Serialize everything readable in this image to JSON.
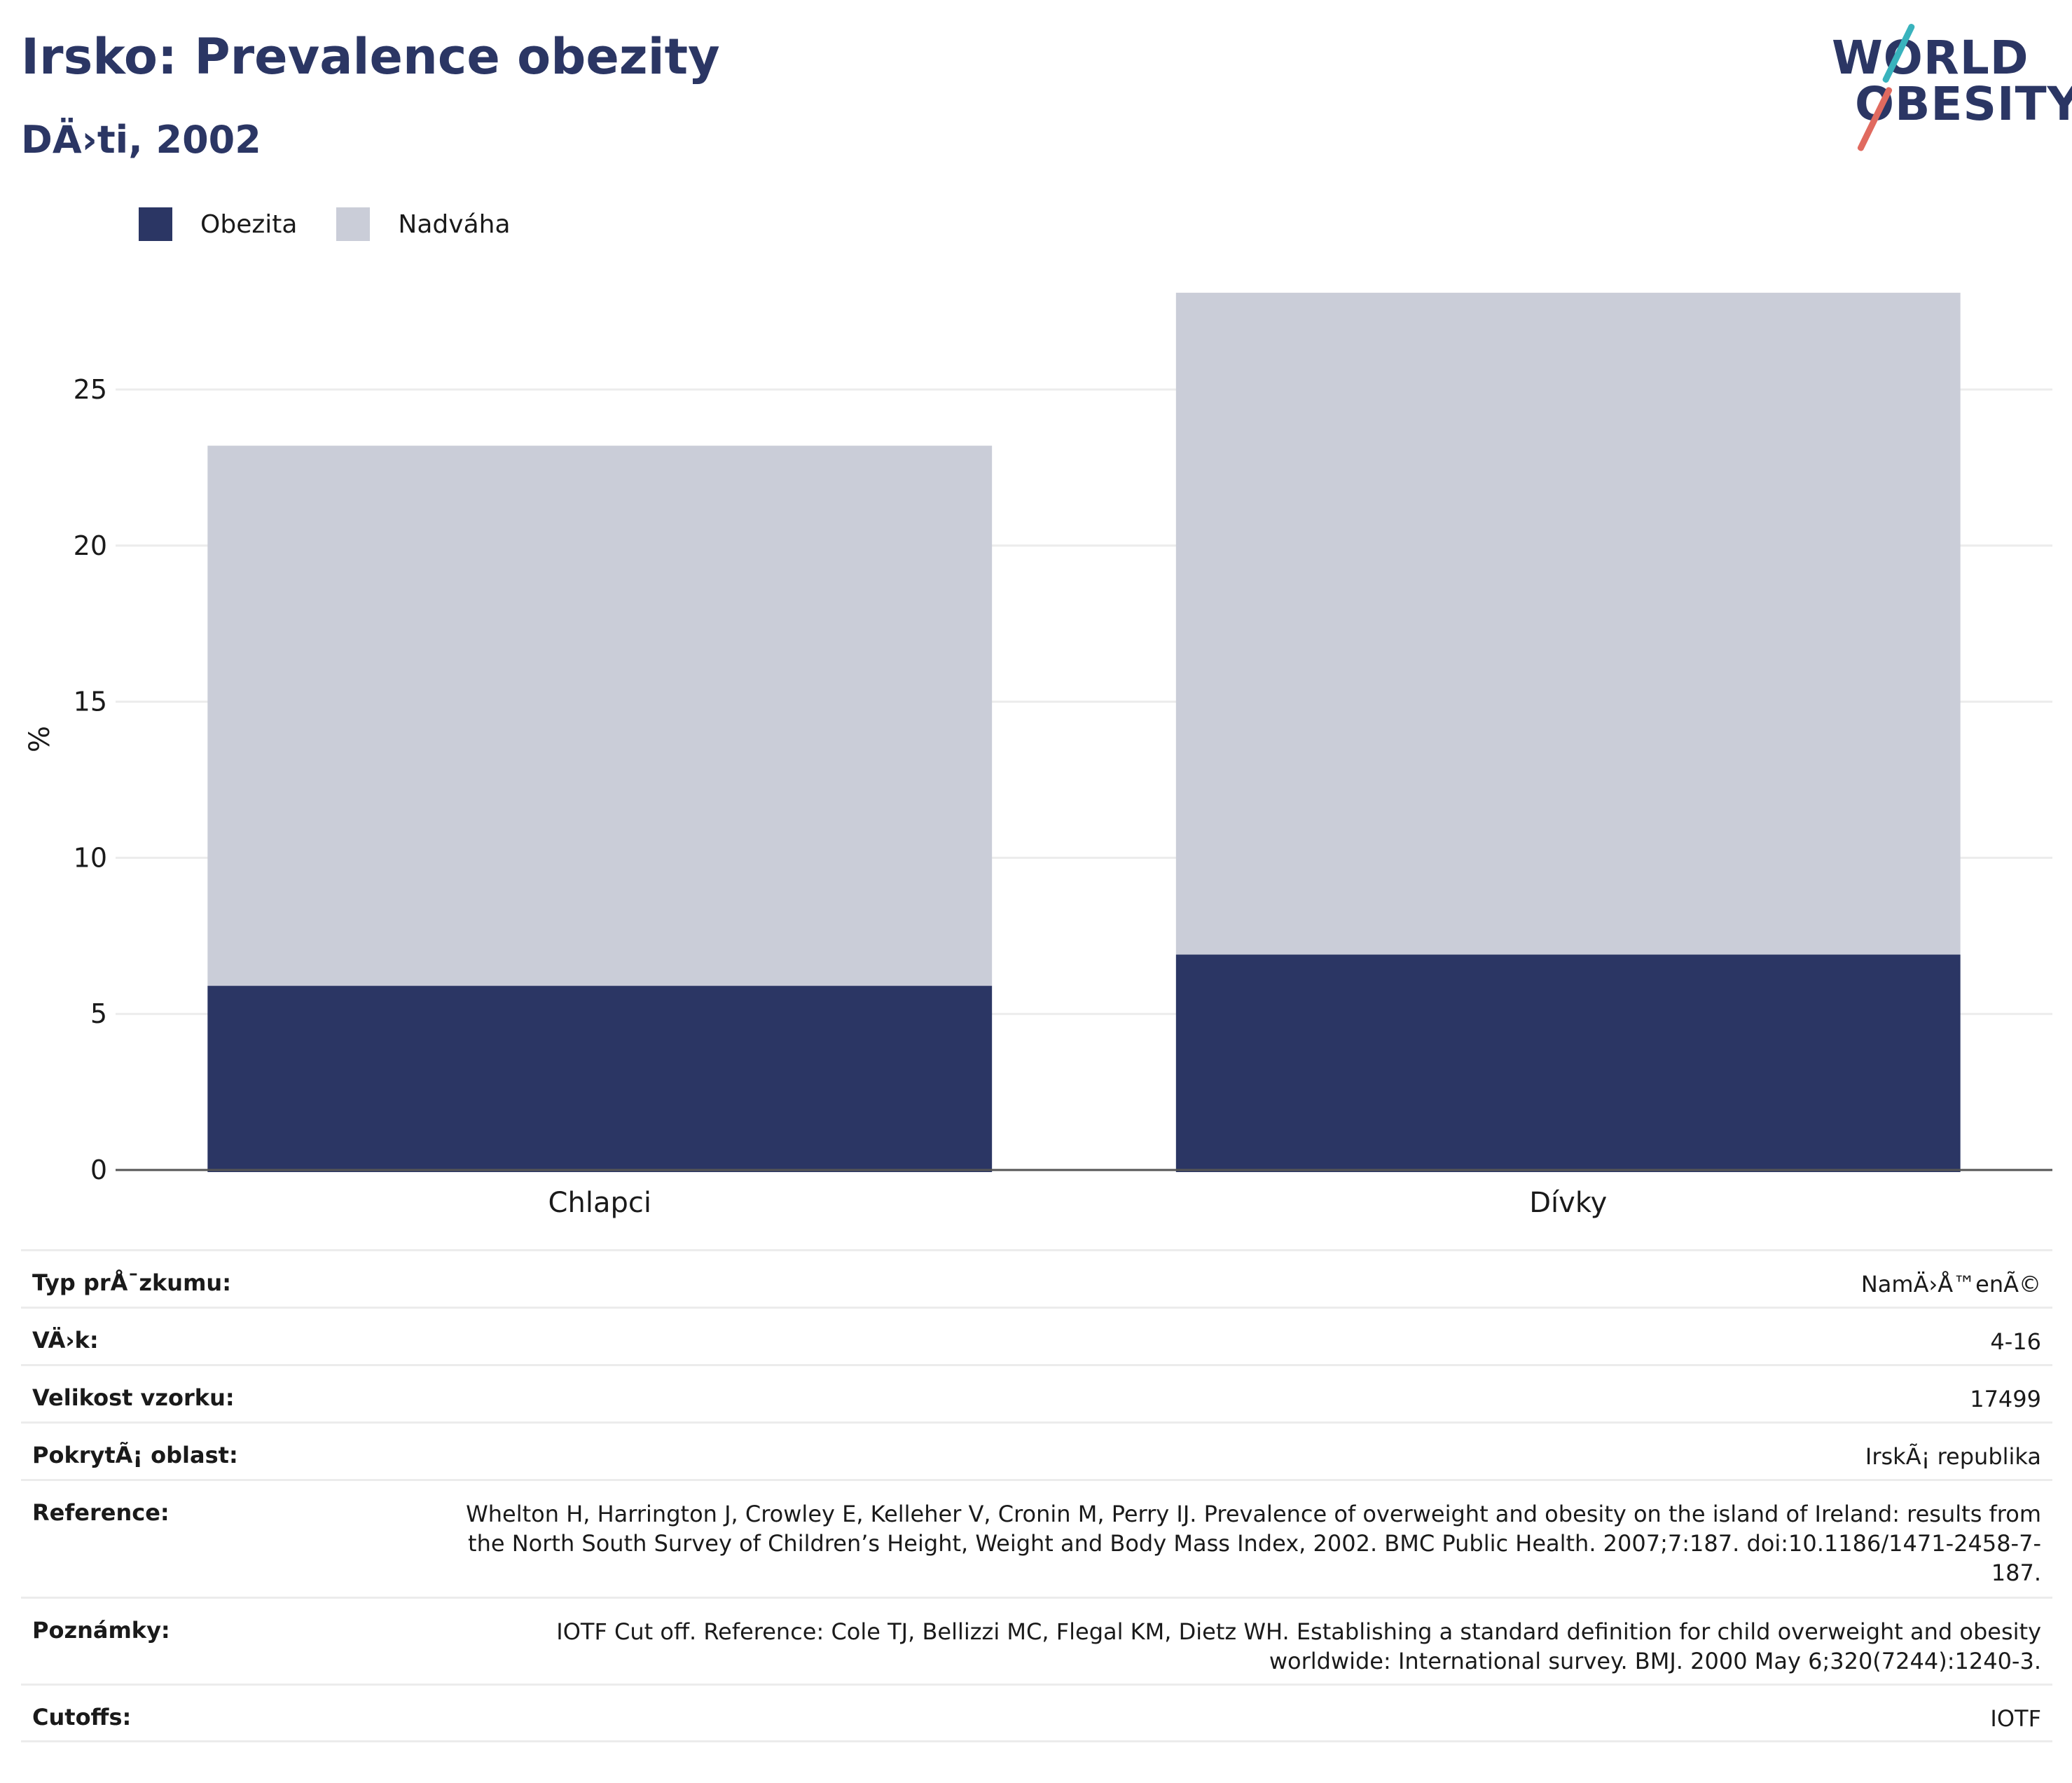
{
  "header": {
    "title": "Irsko: Prevalence obezity",
    "subtitle": "DÄ›ti, 2002"
  },
  "logo": {
    "line1": "WORLD",
    "line2": "OBESITY",
    "colors": {
      "text": "#2b3664",
      "slash_top": "#39b3bd",
      "slash_bottom": "#e06a5f"
    }
  },
  "chart_data": {
    "type": "bar",
    "stacked": true,
    "categories": [
      "Chlapci",
      "Dívky"
    ],
    "series": [
      {
        "name": "Obezita",
        "color": "#2b3664",
        "values": [
          5.9,
          6.9
        ]
      },
      {
        "name": "Nadváha",
        "color": "#cacdd8",
        "values": [
          17.3,
          21.2
        ]
      }
    ],
    "ylabel": "%",
    "xlabel": "",
    "ylim": [
      0,
      28.5
    ],
    "yticks": [
      0,
      5,
      10,
      15,
      20,
      25
    ],
    "grid": true,
    "legend_position": "top-left"
  },
  "info_table": [
    {
      "label": "Typ prÅ¯zkumu:",
      "value": "NamÄ›Å™enÃ©"
    },
    {
      "label": "VÄ›k:",
      "value": "4-16"
    },
    {
      "label": "Velikost vzorku:",
      "value": "17499"
    },
    {
      "label": "PokrytÃ¡ oblast:",
      "value": "IrskÃ¡ republika"
    },
    {
      "label": "Reference:",
      "value": "Whelton H, Harrington J, Crowley E, Kelleher V, Cronin M, Perry IJ. Prevalence of overweight and obesity on the island of Ireland: results from the North South Survey of Children’s Height, Weight and Body Mass Index, 2002. BMC Public Health. 2007;7:187. doi:10.1186/1471-2458-7-187."
    },
    {
      "label": "Poznámky:",
      "value": "IOTF Cut off. Reference: Cole TJ, Bellizzi MC, Flegal KM, Dietz WH. Establishing a standard definition for child overweight and obesity worldwide: International survey. BMJ. 2000 May 6;320(7244):1240-3."
    },
    {
      "label": "Cutoffs:",
      "value": "IOTF"
    }
  ]
}
